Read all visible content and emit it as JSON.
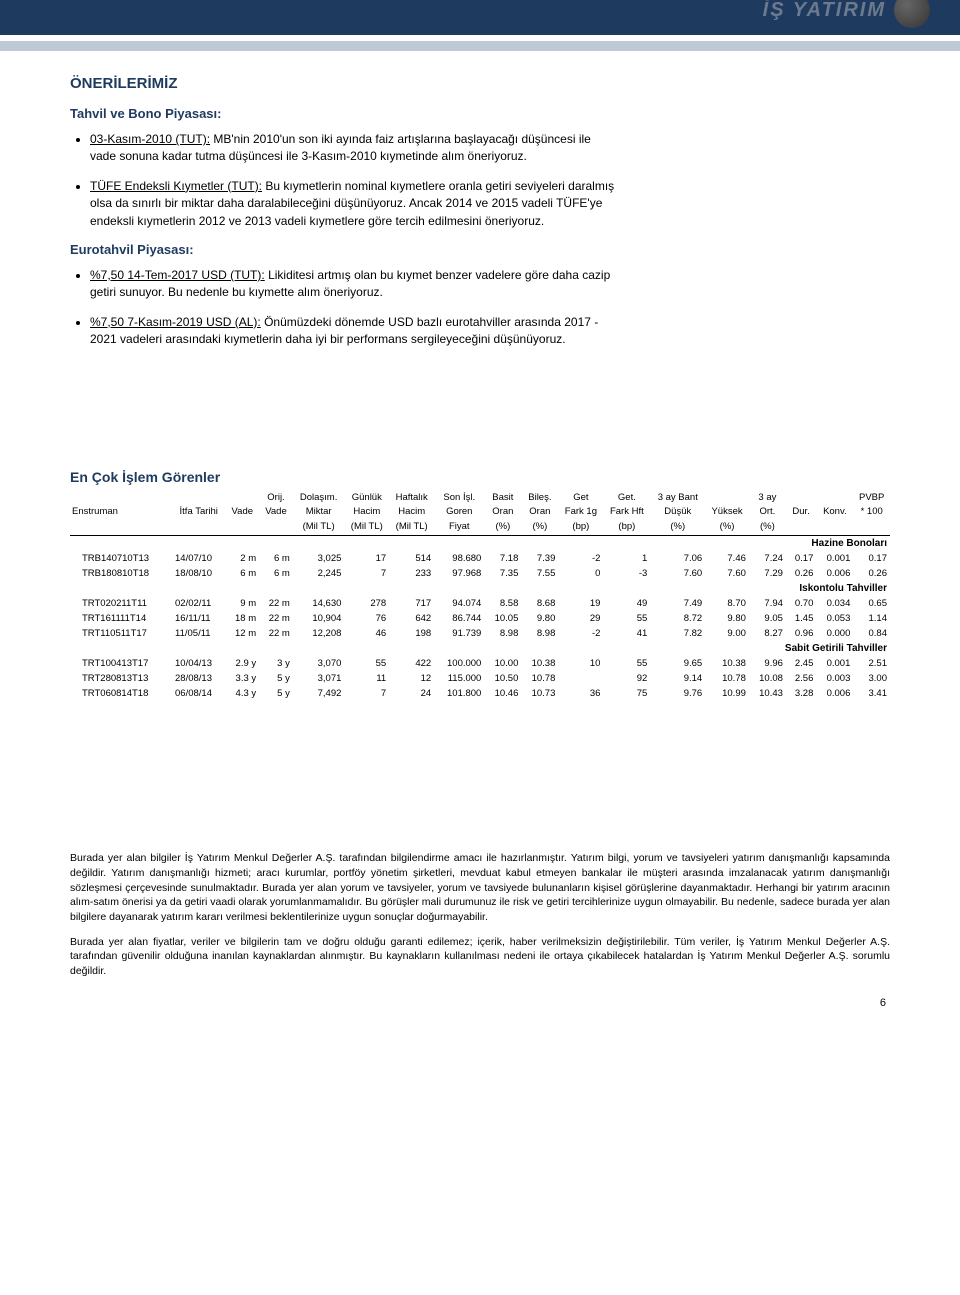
{
  "logo_text": "İŞ YATIRIM",
  "section_title": "ÖNERİLERİMİZ",
  "group1_heading": "Tahvil ve Bono Piyasası:",
  "bullets1": [
    {
      "lead": "03-Kasım-2010 (TUT):",
      "body": " MB'nin 2010'un son iki ayında faiz artışlarına başlayacağı düşüncesi ile vade sonuna kadar tutma düşüncesi ile 3-Kasım-2010 kıymetinde alım öneriyoruz."
    },
    {
      "lead": "TÜFE Endeksli Kıymetler (TUT):",
      "body": " Bu kıymetlerin nominal kıymetlere oranla getiri seviyeleri daralmış olsa da sınırlı bir miktar daha daralabileceğini düşünüyoruz. Ancak 2014 ve 2015 vadeli TÜFE'ye endeksli kıymetlerin 2012 ve 2013 vadeli kıymetlere göre tercih edilmesini öneriyoruz."
    }
  ],
  "group2_heading": "Eurotahvil Piyasası:",
  "bullets2": [
    {
      "lead": "%7,50 14-Tem-2017 USD (TUT):",
      "body": " Likiditesi artmış olan bu kıymet benzer vadelere göre daha cazip getiri sunuyor. Bu nedenle bu kıymette alım öneriyoruz."
    },
    {
      "lead": "%7,50 7-Kasım-2019 USD (AL):",
      "body": " Önümüzdeki dönemde USD bazlı eurotahviller arasında 2017 - 2021 vadeleri arasındaki kıymetlerin daha iyi bir performans sergileyeceğini düşünüyoruz."
    }
  ],
  "table_title": "En Çok İşlem Görenler",
  "columns": [
    {
      "l1": "",
      "l2": "Enstruman"
    },
    {
      "l1": "",
      "l2": "İtfa Tarihi"
    },
    {
      "l1": "",
      "l2": "Vade"
    },
    {
      "l1": "Orij.",
      "l2": "Vade"
    },
    {
      "l1": "Dolaşım.",
      "l2": "Miktar",
      "l3": "(Mil TL)"
    },
    {
      "l1": "Günlük",
      "l2": "Hacim",
      "l3": "(Mil TL)"
    },
    {
      "l1": "Haftalık",
      "l2": "Hacim",
      "l3": "(Mil TL)"
    },
    {
      "l1": "Son İşl.",
      "l2": "Goren",
      "l3": "Fiyat"
    },
    {
      "l1": "Basit",
      "l2": "Oran",
      "l3": "(%)"
    },
    {
      "l1": "Bileş.",
      "l2": "Oran",
      "l3": "(%)"
    },
    {
      "l1": "Get",
      "l2": "Fark 1g",
      "l3": "(bp)"
    },
    {
      "l1": "Get.",
      "l2": "Fark Hft",
      "l3": "(bp)"
    },
    {
      "l1": "3 ay Bant",
      "l2": "Düşük",
      "l3": "(%)"
    },
    {
      "l1": "",
      "l2": "Yüksek",
      "l3": "(%)"
    },
    {
      "l1": "3 ay",
      "l2": "Ort.",
      "l3": "(%)"
    },
    {
      "l1": "",
      "l2": "Dur."
    },
    {
      "l1": "",
      "l2": "Konv."
    },
    {
      "l1": "PVBP",
      "l2": "* 100"
    }
  ],
  "groups": [
    {
      "name": "Hazine Bonoları",
      "rows": [
        [
          "TRB140710T13",
          "14/07/10",
          "2 m",
          "6 m",
          "3,025",
          "17",
          "514",
          "98.680",
          "7.18",
          "7.39",
          "-2",
          "1",
          "7.06",
          "7.46",
          "7.24",
          "0.17",
          "0.001",
          "0.17"
        ],
        [
          "TRB180810T18",
          "18/08/10",
          "6 m",
          "6 m",
          "2,245",
          "7",
          "233",
          "97.968",
          "7.35",
          "7.55",
          "0",
          "-3",
          "7.60",
          "7.60",
          "7.29",
          "0.26",
          "0.006",
          "0.26"
        ]
      ]
    },
    {
      "name": "Iskontolu Tahviller",
      "rows": [
        [
          "TRT020211T11",
          "02/02/11",
          "9 m",
          "22 m",
          "14,630",
          "278",
          "717",
          "94.074",
          "8.58",
          "8.68",
          "19",
          "49",
          "7.49",
          "8.70",
          "7.94",
          "0.70",
          "0.034",
          "0.65"
        ],
        [
          "TRT161111T14",
          "16/11/11",
          "18 m",
          "22 m",
          "10,904",
          "76",
          "642",
          "86.744",
          "10.05",
          "9.80",
          "29",
          "55",
          "8.72",
          "9.80",
          "9.05",
          "1.45",
          "0.053",
          "1.14"
        ],
        [
          "TRT110511T17",
          "11/05/11",
          "12 m",
          "22 m",
          "12,208",
          "46",
          "198",
          "91.739",
          "8.98",
          "8.98",
          "-2",
          "41",
          "7.82",
          "9.00",
          "8.27",
          "0.96",
          "0.000",
          "0.84"
        ]
      ]
    },
    {
      "name": "Sabit Getirili Tahviller",
      "rows": [
        [
          "TRT100413T17",
          "10/04/13",
          "2.9 y",
          "3 y",
          "3,070",
          "55",
          "422",
          "100.000",
          "10.00",
          "10.38",
          "10",
          "55",
          "9.65",
          "10.38",
          "9.96",
          "2.45",
          "0.001",
          "2.51"
        ],
        [
          "TRT280813T13",
          "28/08/13",
          "3.3 y",
          "5 y",
          "3,071",
          "11",
          "12",
          "115.000",
          "10.50",
          "10.78",
          "",
          "92",
          "9.14",
          "10.78",
          "10.08",
          "2.56",
          "0.003",
          "3.00"
        ],
        [
          "TRT060814T18",
          "06/08/14",
          "4.3 y",
          "5 y",
          "7,492",
          "7",
          "24",
          "101.800",
          "10.46",
          "10.73",
          "36",
          "75",
          "9.76",
          "10.99",
          "10.43",
          "3.28",
          "0.006",
          "3.41"
        ]
      ]
    }
  ],
  "disclaimer": [
    "Burada yer alan bilgiler İş Yatırım Menkul Değerler A.Ş. tarafından bilgilendirme amacı ile hazırlanmıştır. Yatırım bilgi, yorum ve tavsiyeleri yatırım danışmanlığı kapsamında değildir. Yatırım danışmanlığı hizmeti; aracı kurumlar, portföy yönetim şirketleri, mevduat kabul etmeyen bankalar ile müşteri arasında imzalanacak yatırım danışmanlığı sözleşmesi çerçevesinde sunulmaktadır. Burada yer alan yorum ve tavsiyeler, yorum ve tavsiyede bulunanların kişisel görüşlerine dayanmaktadır. Herhangi bir yatırım aracının alım-satım önerisi ya da getiri vaadi olarak yorumlanmamalıdır. Bu görüşler mali durumunuz ile risk ve getiri tercihlerinize uygun olmayabilir. Bu nedenle, sadece burada yer alan bilgilere dayanarak yatırım kararı verilmesi beklentilerinize uygun sonuçlar doğurmayabilir.",
    "Burada yer alan fiyatlar, veriler ve bilgilerin tam ve doğru olduğu garanti edilemez; içerik, haber verilmeksizin değiştirilebilir. Tüm veriler, İş Yatırım Menkul Değerler A.Ş. tarafından güvenilir olduğuna inanılan kaynaklardan alınmıştır. Bu kaynakların kullanılması nedeni ile ortaya çıkabilecek hatalardan İş Yatırım Menkul Değerler A.Ş. sorumlu değildir."
  ],
  "page_number": "6",
  "colors": {
    "brand": "#1f3a5f",
    "subband": "#bfc9d6"
  }
}
